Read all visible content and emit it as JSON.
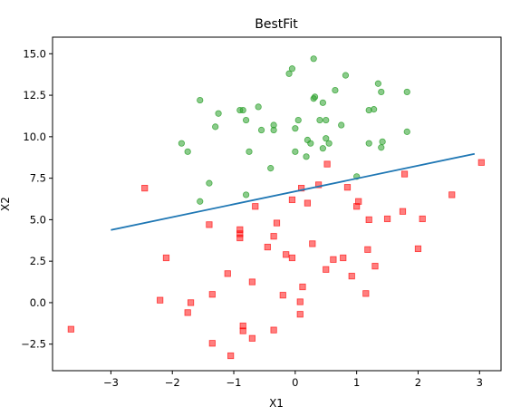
{
  "chart_data": {
    "type": "scatter",
    "title": "BestFit",
    "xlabel": "X1",
    "ylabel": "X2",
    "xlim": [
      -3.95,
      3.35
    ],
    "ylim": [
      -4.1,
      16.0
    ],
    "xticks": [
      -3,
      -2,
      -1,
      0,
      1,
      2,
      3
    ],
    "xtick_labels": [
      "−3",
      "−2",
      "−1",
      "0",
      "1",
      "2",
      "3"
    ],
    "yticks": [
      -2.5,
      0.0,
      2.5,
      5.0,
      7.5,
      10.0,
      12.5,
      15.0
    ],
    "ytick_labels": [
      "−2.5",
      "0.0",
      "2.5",
      "5.0",
      "7.5",
      "10.0",
      "12.5",
      "15.0"
    ],
    "grid": false,
    "series": [
      {
        "marker": "circle",
        "color": "#2ca02c",
        "points": [
          [
            -0.1,
            13.8
          ],
          [
            -0.05,
            14.1
          ],
          [
            0.3,
            14.7
          ],
          [
            0.82,
            13.7
          ],
          [
            1.35,
            13.2
          ],
          [
            -1.55,
            12.2
          ],
          [
            -1.25,
            11.4
          ],
          [
            -0.9,
            11.6
          ],
          [
            -0.85,
            11.6
          ],
          [
            -0.6,
            11.8
          ],
          [
            -1.3,
            10.6
          ],
          [
            -0.8,
            11.0
          ],
          [
            0.05,
            11.0
          ],
          [
            0.3,
            12.3
          ],
          [
            0.32,
            12.4
          ],
          [
            0.45,
            12.05
          ],
          [
            0.65,
            12.8
          ],
          [
            0.4,
            11.0
          ],
          [
            0.5,
            11.0
          ],
          [
            1.2,
            11.6
          ],
          [
            1.28,
            11.65
          ],
          [
            1.4,
            12.7
          ],
          [
            1.82,
            12.7
          ],
          [
            -1.85,
            9.6
          ],
          [
            -1.75,
            9.1
          ],
          [
            -0.75,
            9.1
          ],
          [
            -0.55,
            10.4
          ],
          [
            -0.35,
            10.4
          ],
          [
            -0.35,
            10.7
          ],
          [
            0.0,
            10.5
          ],
          [
            0.2,
            9.8
          ],
          [
            0.25,
            9.6
          ],
          [
            0.45,
            9.3
          ],
          [
            0.5,
            9.9
          ],
          [
            0.55,
            9.6
          ],
          [
            0.75,
            10.7
          ],
          [
            1.2,
            9.6
          ],
          [
            1.4,
            9.35
          ],
          [
            1.42,
            9.7
          ],
          [
            1.82,
            10.3
          ],
          [
            0.0,
            9.1
          ],
          [
            0.18,
            8.8
          ],
          [
            -0.4,
            8.1
          ],
          [
            -1.4,
            7.2
          ],
          [
            -0.8,
            6.5
          ],
          [
            -1.55,
            6.1
          ],
          [
            1.0,
            7.6
          ]
        ]
      },
      {
        "marker": "square",
        "color": "#ff0000",
        "points": [
          [
            -2.45,
            6.9
          ],
          [
            -0.65,
            5.8
          ],
          [
            -0.3,
            4.8
          ],
          [
            -1.4,
            4.7
          ],
          [
            -0.9,
            4.4
          ],
          [
            -0.9,
            4.15
          ],
          [
            -0.9,
            3.9
          ],
          [
            -0.35,
            4.0
          ],
          [
            -0.45,
            3.35
          ],
          [
            -0.05,
            6.2
          ],
          [
            0.1,
            6.9
          ],
          [
            0.2,
            6.0
          ],
          [
            0.38,
            7.1
          ],
          [
            0.52,
            8.35
          ],
          [
            0.85,
            6.95
          ],
          [
            1.0,
            5.8
          ],
          [
            1.03,
            6.1
          ],
          [
            1.2,
            5.0
          ],
          [
            1.5,
            5.05
          ],
          [
            1.75,
            5.5
          ],
          [
            2.07,
            5.05
          ],
          [
            1.78,
            7.75
          ],
          [
            2.55,
            6.5
          ],
          [
            3.03,
            8.45
          ],
          [
            -2.1,
            2.7
          ],
          [
            -0.15,
            2.9
          ],
          [
            0.28,
            3.55
          ],
          [
            -0.05,
            2.7
          ],
          [
            0.62,
            2.6
          ],
          [
            0.78,
            2.7
          ],
          [
            1.18,
            3.2
          ],
          [
            2.0,
            3.25
          ],
          [
            1.3,
            2.2
          ],
          [
            0.5,
            2.0
          ],
          [
            0.92,
            1.6
          ],
          [
            -1.1,
            1.75
          ],
          [
            -0.7,
            1.25
          ],
          [
            -0.2,
            0.45
          ],
          [
            0.12,
            0.95
          ],
          [
            0.08,
            0.05
          ],
          [
            0.08,
            -0.7
          ],
          [
            1.15,
            0.55
          ],
          [
            -2.2,
            0.15
          ],
          [
            -1.7,
            0.0
          ],
          [
            -1.75,
            -0.6
          ],
          [
            -1.35,
            0.5
          ],
          [
            -0.85,
            -1.4
          ],
          [
            -0.85,
            -1.7
          ],
          [
            -0.35,
            -1.65
          ],
          [
            -0.7,
            -2.15
          ],
          [
            -1.35,
            -2.45
          ],
          [
            -1.05,
            -3.2
          ],
          [
            -3.65,
            -1.6
          ]
        ]
      }
    ],
    "line": {
      "color": "#1f77b4",
      "points": [
        [
          -3.0,
          4.38
        ],
        [
          2.92,
          8.97
        ]
      ]
    }
  }
}
